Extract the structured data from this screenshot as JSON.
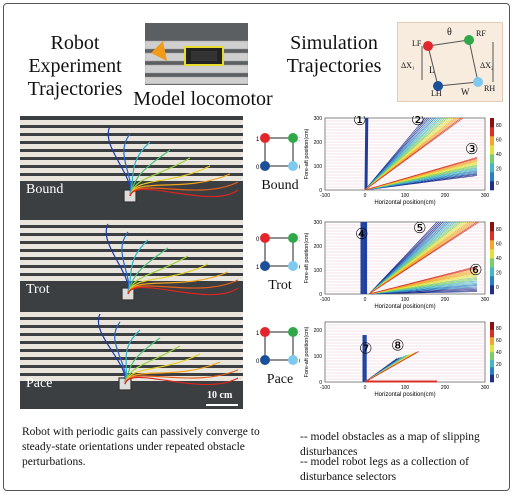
{
  "titles": {
    "robot_experiment": [
      "Robot",
      "Experiment",
      "Trajectories"
    ],
    "simulation": [
      "Simulation",
      "Trajectories"
    ],
    "model_locomotor": "Model locomotor"
  },
  "photo": {
    "gaits": [
      "Bound",
      "Trot",
      "Pace"
    ],
    "scale_bar": "10 cm"
  },
  "gaits": [
    {
      "name": "Bound",
      "markers": [
        "1",
        "1",
        "0",
        "0"
      ]
    },
    {
      "name": "Trot",
      "markers": [
        "0",
        "1",
        "1",
        "0"
      ]
    },
    {
      "name": "Pace",
      "markers": [
        "1",
        "1",
        "0",
        "0"
      ]
    }
  ],
  "model_labels": {
    "LF": "LF",
    "RF": "RF",
    "LH": "LH",
    "RH": "RH",
    "theta": "θ",
    "L": "L",
    "W": "W",
    "dx1": "ΔX₁",
    "dx2": "ΔX₂"
  },
  "plots": {
    "xlabel": "Horizontal position(cm)",
    "ylabel": "Fore-aft position(cm)",
    "xticks": [
      "-100",
      "0",
      "100",
      "200",
      "300"
    ],
    "yticks": [
      "0",
      "100",
      "200",
      "300"
    ],
    "cbar_ticks": [
      "0",
      "20",
      "40",
      "60",
      "80"
    ],
    "panels": [
      {
        "name": "Bound",
        "labels": [
          "①",
          "②",
          "③"
        ]
      },
      {
        "name": "Trot",
        "labels": [
          "④",
          "⑤",
          "⑥"
        ]
      },
      {
        "name": "Pace",
        "labels": [
          "⑦",
          "⑧"
        ]
      }
    ]
  },
  "captions": {
    "left": "Robot with periodic gaits can passively converge to steady-state orientations under repeated obstacle perturbations.",
    "right": [
      "-- model obstacles as a map of slipping disturbances",
      "-- model robot legs as a collection of disturbance selectors"
    ]
  },
  "colors": {
    "red": "#e3262c",
    "green": "#2fa84a",
    "dark_blue": "#1b4f9a",
    "light_blue": "#7fc8ee"
  }
}
